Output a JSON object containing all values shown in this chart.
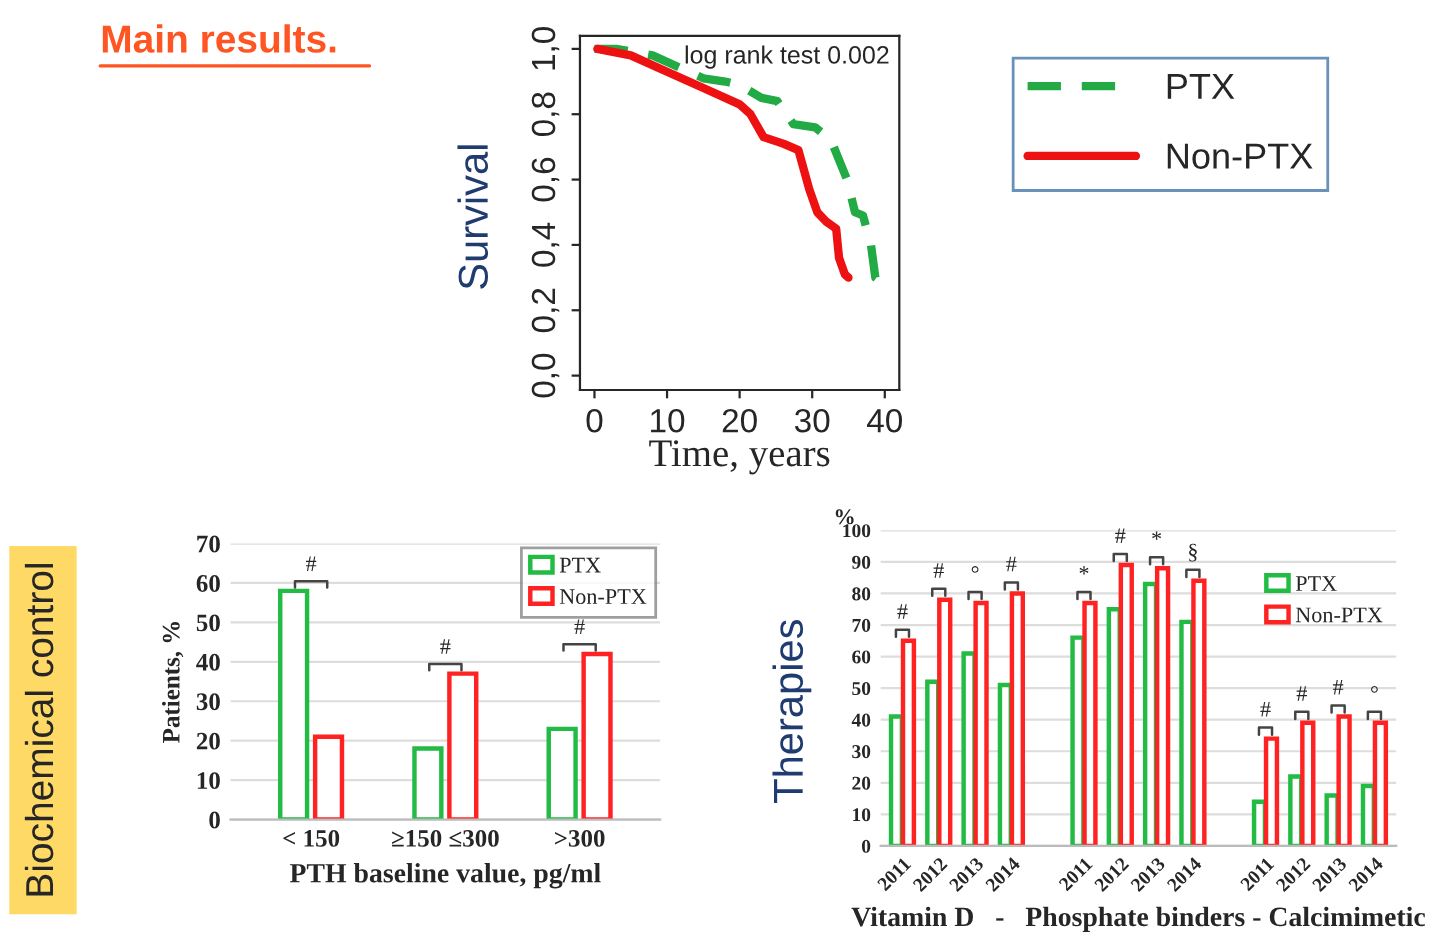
{
  "chart_data": [
    {
      "type": "line",
      "title": "Main results.",
      "xlabel": "Time, years",
      "ylabel": "Survival",
      "annotations": [
        "log rank test 0.002"
      ],
      "xlim": [
        -2,
        42
      ],
      "xticks": [
        0,
        10,
        20,
        30,
        40
      ],
      "ylim": [
        -0.044,
        1.04
      ],
      "yticks": [
        {
          "value": 0,
          "label": "0,0"
        },
        {
          "value": 0.2,
          "label": "0,2"
        },
        {
          "value": 0.4,
          "label": "0,4"
        },
        {
          "value": 0.6,
          "label": "0,6"
        },
        {
          "value": 0.8,
          "label": "0,8"
        },
        {
          "value": 1.0,
          "label": "1,0"
        }
      ],
      "legend": "right",
      "grid": false,
      "series": [
        {
          "name": "PTX",
          "color": "#22aa44",
          "line_style": "dashed",
          "x": [
            0,
            3,
            8,
            12,
            15,
            18,
            20,
            23,
            25.2,
            27.4,
            30.4,
            32.6,
            34.8,
            35.9,
            37,
            38.1,
            38.7,
            39.3
          ],
          "values": [
            1.0,
            1.0,
            0.98,
            0.94,
            0.91,
            0.9,
            0.89,
            0.85,
            0.84,
            0.77,
            0.76,
            0.72,
            0.6,
            0.5,
            0.49,
            0.4,
            0.3,
            0.29
          ]
        },
        {
          "name": "Non-PTX",
          "color": "#ee1111",
          "line_style": "solid",
          "x": [
            0.4,
            5,
            10,
            15,
            20,
            21.5,
            23.3,
            26,
            28.1,
            29.6,
            30.7,
            32,
            33.3,
            33.7,
            34.5,
            35
          ],
          "values": [
            1.0,
            0.98,
            0.93,
            0.88,
            0.83,
            0.8,
            0.73,
            0.71,
            0.69,
            0.57,
            0.5,
            0.47,
            0.45,
            0.36,
            0.31,
            0.3
          ]
        }
      ]
    },
    {
      "type": "bar",
      "title": "Biochemical control",
      "xlabel": "PTH baseline value, pg/ml",
      "ylabel": "Patients, %",
      "categories": [
        "< 150",
        "≥150 ≤300",
        ">300"
      ],
      "ylim": [
        0,
        70
      ],
      "yticks": [
        0,
        10,
        20,
        30,
        40,
        50,
        60,
        70
      ],
      "grid": "y",
      "legend": "top right",
      "annotations": [
        "#",
        "#",
        "#"
      ],
      "series": [
        {
          "name": "PTX",
          "color": "#22bb44",
          "values": [
            58,
            18,
            23
          ]
        },
        {
          "name": "Non-PTX",
          "color": "#ff2222",
          "values": [
            21,
            37,
            42
          ]
        }
      ]
    },
    {
      "type": "bar",
      "title": "Therapies",
      "xlabel": "Vitamin D   -   Phosphate binders - Calcimimetic",
      "ylabel": "%",
      "categories": [
        "2011",
        "2012",
        "2013",
        "2014",
        null,
        "2011",
        "2012",
        "2013",
        "2014",
        null,
        "2011",
        "2012",
        "2013",
        "2014"
      ],
      "ylim": [
        0,
        100
      ],
      "yticks": [
        0,
        10,
        20,
        30,
        40,
        50,
        60,
        70,
        80,
        90,
        100
      ],
      "grid": "y",
      "legend": "top right",
      "annotations": [
        "#",
        "#",
        "°",
        "#",
        "*",
        "#",
        "*",
        "§",
        "#",
        "#",
        "#",
        "°"
      ],
      "series": [
        {
          "name": "PTX",
          "color": "#22bb44",
          "values": [
            41,
            52,
            61,
            51,
            null,
            66,
            75,
            83,
            71,
            null,
            14,
            22,
            16,
            19
          ]
        },
        {
          "name": "Non-PTX",
          "color": "#ff2222",
          "values": [
            65,
            78,
            77,
            80,
            null,
            77,
            89,
            88,
            84,
            null,
            34,
            39,
            41,
            39
          ]
        }
      ]
    }
  ]
}
